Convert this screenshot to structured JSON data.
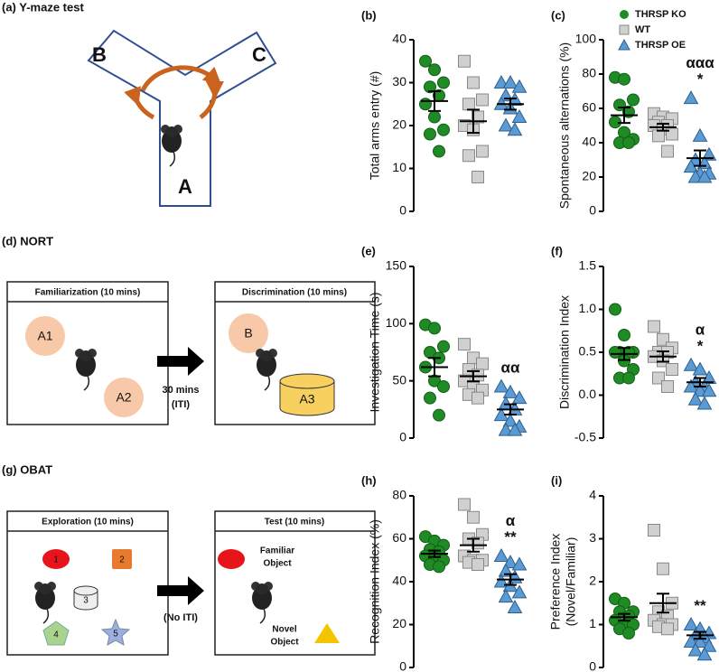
{
  "panels": {
    "a": {
      "title": "(a) Y-maze test",
      "arms": [
        "B",
        "C",
        "A"
      ]
    },
    "d": {
      "title": "(d) NORT",
      "boxes": [
        {
          "header": "Familiarization (10 mins)",
          "objects": [
            "A1",
            "A2"
          ]
        },
        {
          "header": "Discrimination (10 mins)",
          "objects": [
            "B",
            "A3"
          ]
        }
      ],
      "arrow_label": [
        "30 mins",
        "(ITI)"
      ]
    },
    "g": {
      "title": "(g) OBAT",
      "boxes": [
        {
          "header": "Exploration (10 mins)",
          "objects": [
            "1",
            "2",
            "3",
            "4",
            "5"
          ]
        },
        {
          "header": "Test (10 mins)",
          "objects": [
            [
              "Familiar",
              "Object"
            ],
            [
              "Novel",
              "Object"
            ]
          ]
        }
      ],
      "arrow_label": [
        "(No ITI)"
      ]
    }
  },
  "chart_data": [
    {
      "type": "dot",
      "label": "(b)",
      "ylabel": "Total arms entry (#)",
      "ylim": [
        0,
        40
      ],
      "yticks": [
        0,
        10,
        20,
        30,
        40
      ],
      "series": [
        {
          "marker": "circle",
          "color": "#1f8b24",
          "values": [
            35,
            33,
            30,
            29,
            27,
            25,
            22,
            19,
            18,
            14
          ],
          "mean": 25.7,
          "sem": 2.3
        },
        {
          "marker": "square",
          "color": "#d0d0d0",
          "values": [
            35,
            30,
            26,
            25,
            22,
            20,
            19,
            14,
            13,
            8
          ],
          "mean": 21,
          "sem": 2.7
        },
        {
          "marker": "triangle",
          "color": "#5b9bd5",
          "values": [
            30,
            30,
            29,
            27,
            26,
            25,
            24,
            22,
            20,
            19
          ],
          "mean": 25,
          "sem": 1.3
        }
      ],
      "annotations": []
    },
    {
      "type": "dot",
      "label": "(c)",
      "ylabel": "Spontaneous alternations (%)",
      "ylim": [
        0,
        100
      ],
      "yticks": [
        0,
        20,
        40,
        60,
        80,
        100
      ],
      "legend": "top-right",
      "series": [
        {
          "name": "THRSP KO",
          "marker": "circle",
          "color": "#1f8b24",
          "values": [
            78,
            77,
            65,
            62,
            58,
            52,
            46,
            42,
            40,
            40
          ],
          "mean": 56,
          "sem": 4.5
        },
        {
          "name": "WT",
          "marker": "square",
          "color": "#d0d0d0",
          "values": [
            57,
            55,
            54,
            52,
            50,
            50,
            48,
            45,
            44,
            35
          ],
          "mean": 49,
          "sem": 2
        },
        {
          "name": "THRSP OE",
          "marker": "triangle",
          "color": "#5b9bd5",
          "values": [
            66,
            44,
            33,
            30,
            28,
            26,
            22,
            22,
            20,
            20
          ],
          "mean": 31,
          "sem": 4.5
        }
      ],
      "annotations": [
        "ααα",
        "*"
      ]
    },
    {
      "type": "dot",
      "label": "(e)",
      "ylabel": "Investigation Time (s)",
      "ylim": [
        0,
        150
      ],
      "yticks": [
        0,
        50,
        100,
        150
      ],
      "series": [
        {
          "marker": "circle",
          "color": "#1f8b24",
          "values": [
            99,
            96,
            80,
            75,
            70,
            62,
            50,
            45,
            35,
            20
          ],
          "mean": 62,
          "sem": 8
        },
        {
          "marker": "square",
          "color": "#d0d0d0",
          "values": [
            82,
            70,
            65,
            60,
            55,
            50,
            45,
            42,
            38,
            35
          ],
          "mean": 54,
          "sem": 4.5
        },
        {
          "marker": "triangle",
          "color": "#5b9bd5",
          "values": [
            45,
            40,
            35,
            30,
            25,
            20,
            15,
            10,
            7,
            7
          ],
          "mean": 25,
          "sem": 4.5
        }
      ],
      "annotations": [
        "αα"
      ]
    },
    {
      "type": "dot",
      "label": "(f)",
      "ylabel": "Discrimination Index",
      "ylim": [
        -0.5,
        1.5
      ],
      "yticks": [
        -0.5,
        {
          "value": 0,
          "label": "0.0"
        },
        0.5,
        {
          "value": 1,
          "label": "1.0"
        },
        1.5
      ],
      "series": [
        {
          "marker": "circle",
          "color": "#1f8b24",
          "values": [
            1.0,
            0.7,
            0.5,
            0.5,
            0.5,
            0.5,
            0.4,
            0.3,
            0.2,
            0.2
          ],
          "mean": 0.48,
          "sem": 0.07
        },
        {
          "marker": "square",
          "color": "#d0d0d0",
          "values": [
            0.8,
            0.65,
            0.55,
            0.5,
            0.5,
            0.45,
            0.4,
            0.3,
            0.2,
            0.1
          ],
          "mean": 0.45,
          "sem": 0.06
        },
        {
          "marker": "triangle",
          "color": "#5b9bd5",
          "values": [
            0.35,
            0.3,
            0.2,
            0.15,
            0.1,
            0.1,
            0.05,
            0.05,
            -0.05,
            -0.1
          ],
          "mean": 0.15,
          "sem": 0.05
        }
      ],
      "annotations": [
        "α",
        "*"
      ]
    },
    {
      "type": "dot",
      "label": "(h)",
      "ylabel": "Recognition Index (%)",
      "ylim": [
        0,
        80
      ],
      "yticks": [
        0,
        20,
        40,
        60,
        80
      ],
      "series": [
        {
          "marker": "circle",
          "color": "#1f8b24",
          "values": [
            61,
            59,
            57,
            55,
            54,
            52,
            51,
            50,
            48,
            47
          ],
          "mean": 53,
          "sem": 1.5
        },
        {
          "marker": "square",
          "color": "#d0d0d0",
          "values": [
            76,
            70,
            62,
            60,
            58,
            52,
            50,
            50,
            49,
            48
          ],
          "mean": 57,
          "sem": 3
        },
        {
          "marker": "triangle",
          "color": "#5b9bd5",
          "values": [
            52,
            49,
            48,
            45,
            42,
            40,
            38,
            35,
            33,
            28
          ],
          "mean": 41,
          "sem": 2.5
        }
      ],
      "annotations": [
        "α",
        "**"
      ]
    },
    {
      "type": "dot",
      "label": "(i)",
      "ylabel": [
        "Preference Index",
        "(Novel/Familiar)"
      ],
      "ylim": [
        0,
        4
      ],
      "yticks": [
        0,
        1,
        2,
        3,
        4
      ],
      "series": [
        {
          "marker": "circle",
          "color": "#1f8b24",
          "values": [
            1.6,
            1.5,
            1.3,
            1.3,
            1.2,
            1.1,
            1.0,
            1.0,
            0.9,
            0.8
          ],
          "mean": 1.17,
          "sem": 0.08
        },
        {
          "marker": "square",
          "color": "#d0d0d0",
          "values": [
            3.2,
            2.3,
            1.5,
            1.3,
            1.2,
            1.1,
            1.0,
            1.0,
            0.95,
            0.9
          ],
          "mean": 1.5,
          "sem": 0.22
        },
        {
          "marker": "triangle",
          "color": "#5b9bd5",
          "values": [
            1.0,
            0.9,
            0.8,
            0.75,
            0.7,
            0.6,
            0.6,
            0.5,
            0.4,
            0.3
          ],
          "mean": 0.75,
          "sem": 0.08
        }
      ],
      "annotations": [
        "**"
      ]
    }
  ]
}
